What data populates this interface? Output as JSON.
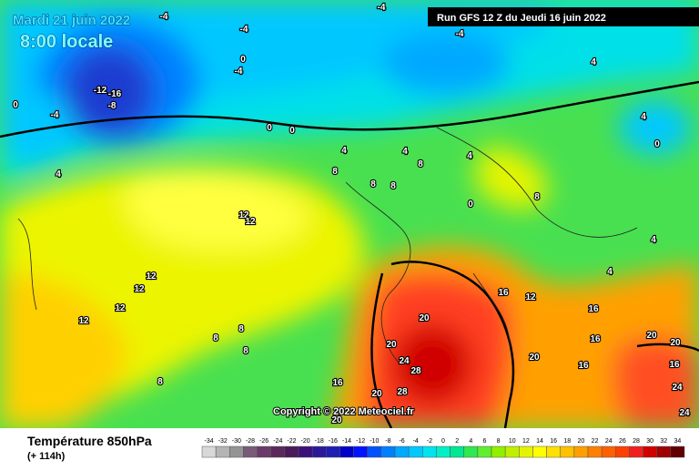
{
  "header": {
    "date": "Mardi 21 juin 2022",
    "time": "8:00 locale",
    "run": "Run GFS 12 Z du Jeudi 16 juin 2022",
    "copyright": "Copyright © 2022 Meteociel.fr"
  },
  "footer": {
    "title": "Température 850hPa",
    "lead": "(+ 114h)"
  },
  "scale": {
    "values": [
      -34,
      -32,
      -30,
      -28,
      -26,
      -24,
      -22,
      -20,
      -18,
      -16,
      -14,
      -12,
      -10,
      -8,
      -6,
      -4,
      -2,
      0,
      2,
      4,
      6,
      8,
      10,
      12,
      14,
      16,
      18,
      20,
      22,
      24,
      26,
      28,
      30,
      32,
      34
    ],
    "colors": [
      "#d8d8d8",
      "#b4b4b4",
      "#949494",
      "#7a5a7a",
      "#6a3a6a",
      "#5a285a",
      "#4a1a5a",
      "#3a107a",
      "#2a1a9a",
      "#1e1eb4",
      "#0000c8",
      "#0014ff",
      "#0050ff",
      "#0080ff",
      "#00a8ff",
      "#00c8ff",
      "#00e4f0",
      "#00f0c8",
      "#00e890",
      "#30e850",
      "#60ee30",
      "#90f000",
      "#c0f000",
      "#e4f400",
      "#ffff00",
      "#ffe000",
      "#ffc000",
      "#ffa000",
      "#ff8000",
      "#ff6000",
      "#ff4000",
      "#f02020",
      "#d00000",
      "#a00000",
      "#600000"
    ]
  },
  "contour_labels": [
    -4,
    -4,
    -4,
    -4,
    -12,
    -16,
    -8,
    -4,
    0,
    0,
    -4,
    0,
    0,
    4,
    4,
    0,
    4,
    4,
    8,
    8,
    8,
    8,
    12,
    12,
    4,
    8,
    0,
    12,
    12,
    12,
    12,
    16,
    12,
    16,
    4,
    4,
    20,
    20,
    20,
    24,
    28,
    20,
    20,
    16,
    16,
    24,
    28,
    20,
    20,
    16,
    8,
    8,
    8,
    8,
    4,
    16,
    24
  ]
}
